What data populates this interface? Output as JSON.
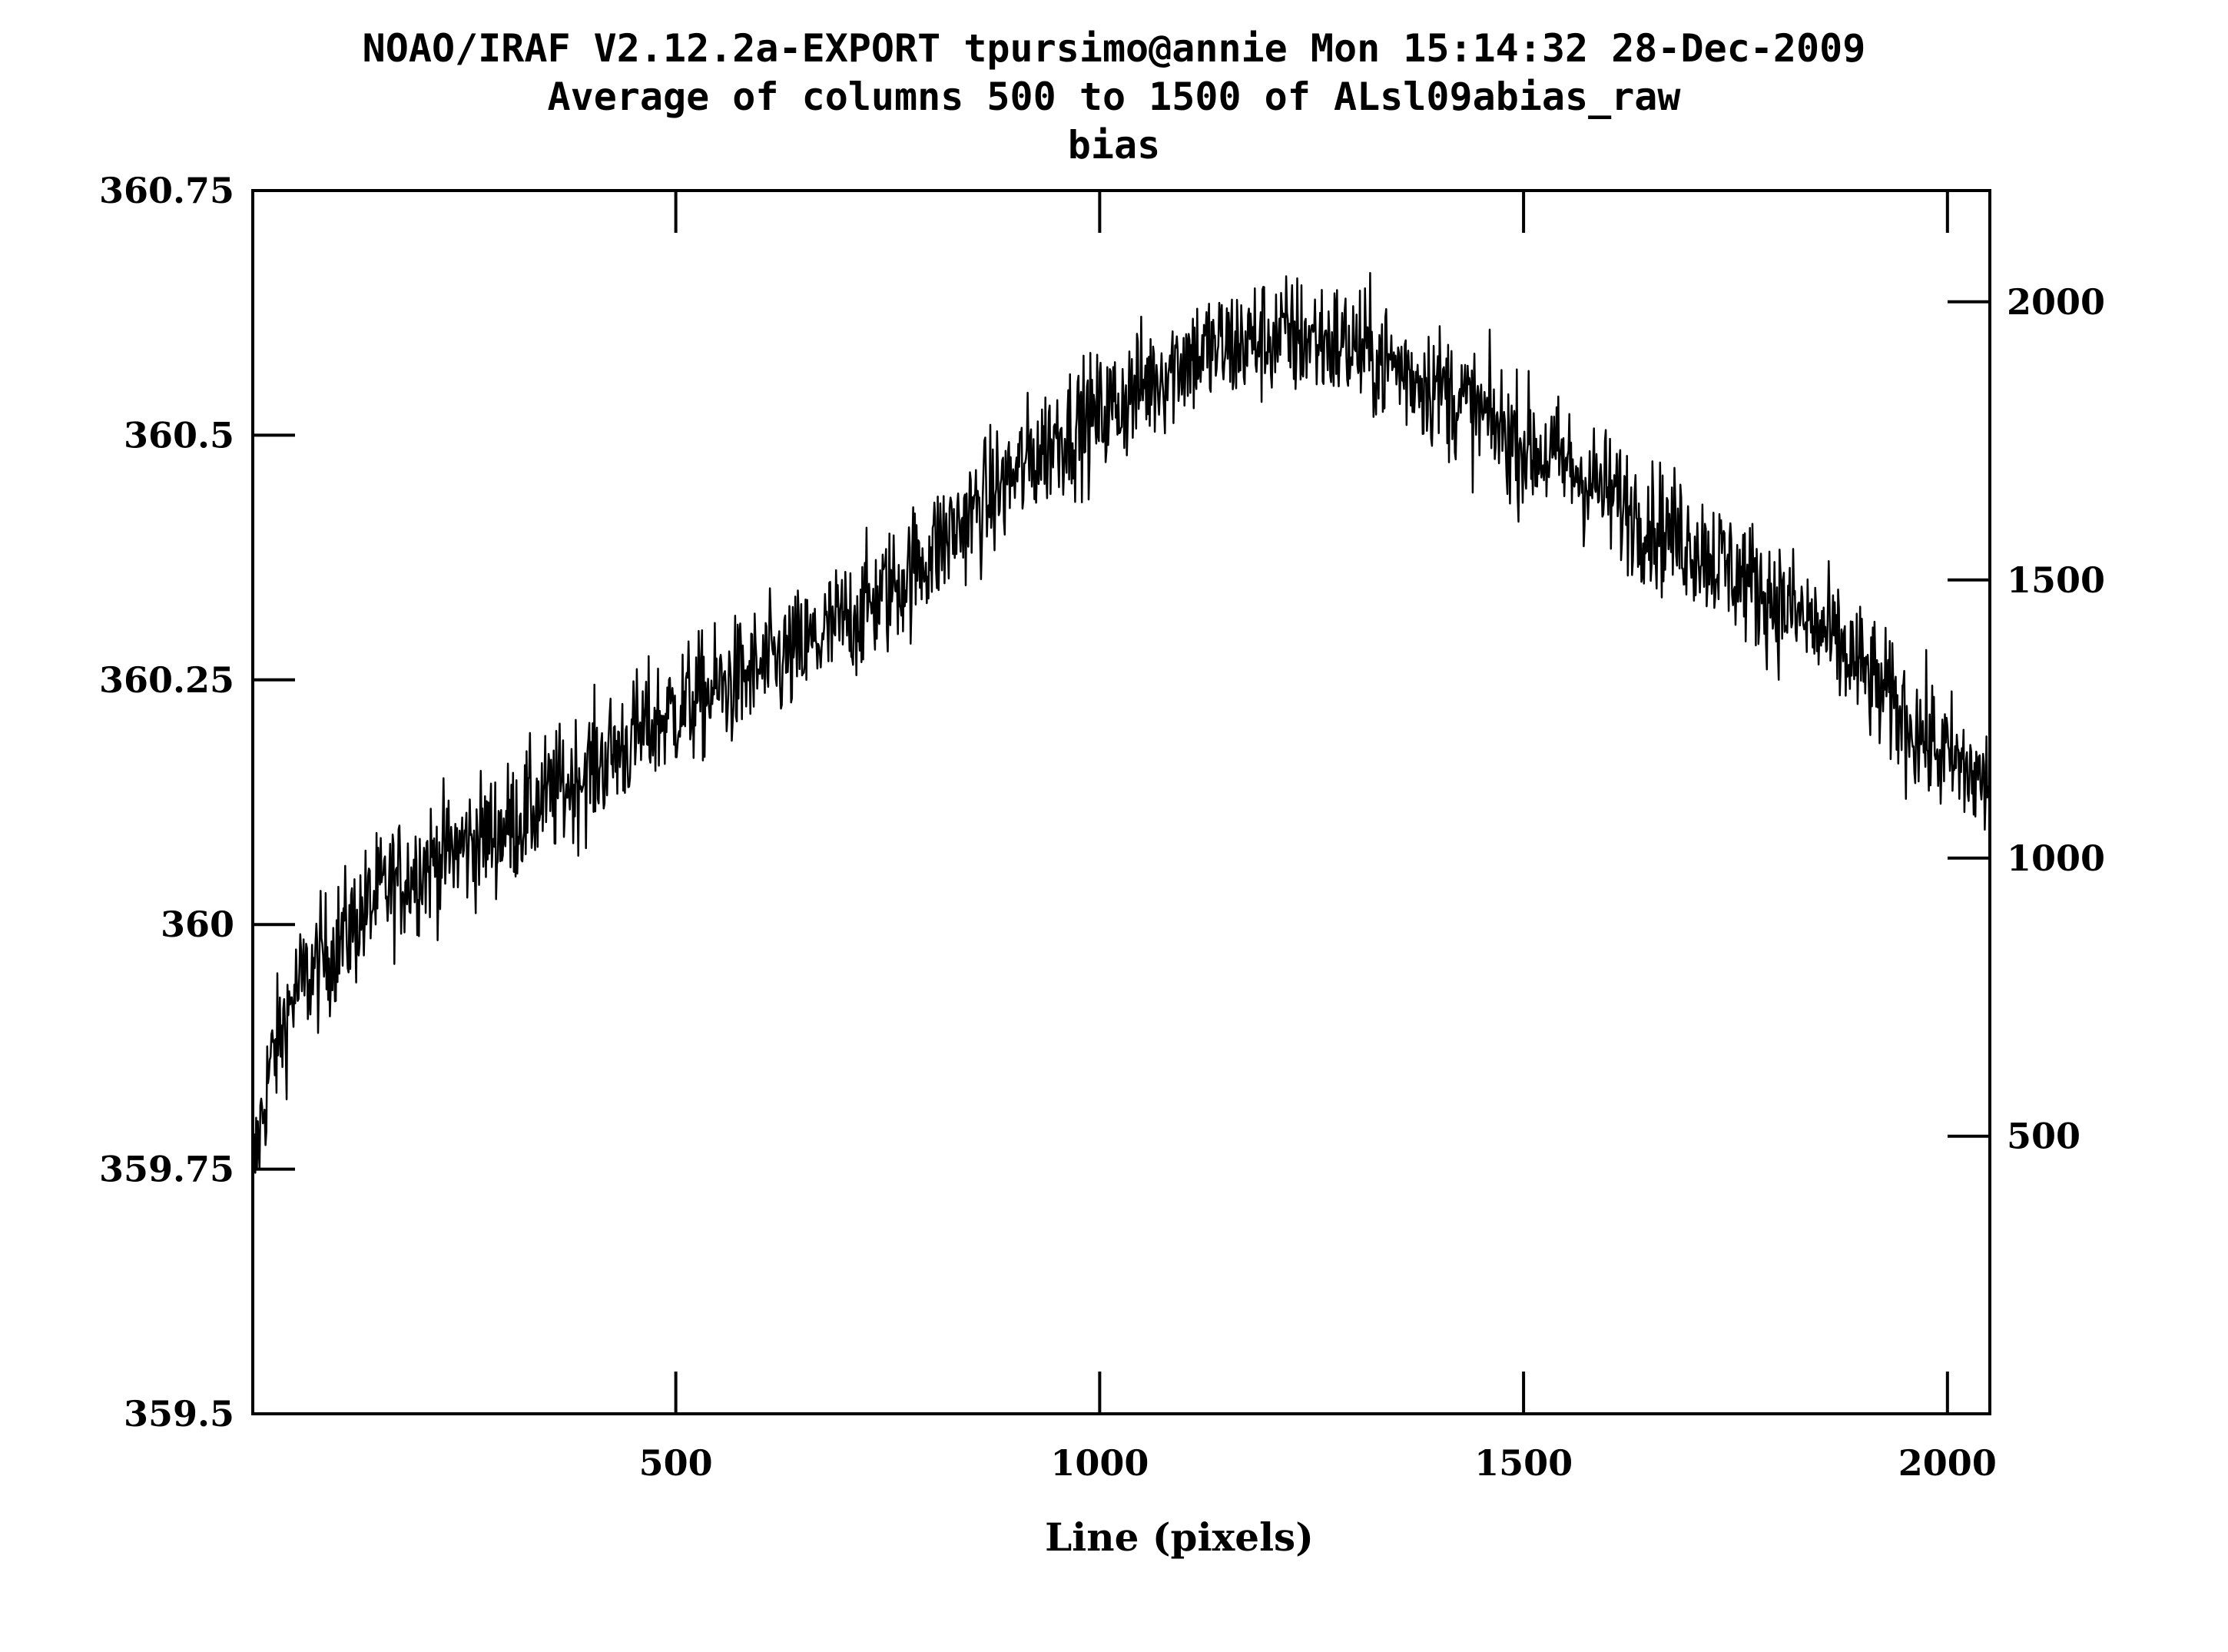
{
  "header": {
    "line1": "NOAO/IRAF V2.12.2a-EXPORT tpursimo@annie Mon 15:14:32 28-Dec-2009",
    "line2": "Average of columns 500 to 1500 of ALsl09abias_raw",
    "line3": "bias"
  },
  "chart_data": {
    "type": "line",
    "title": "Average of columns 500 to 1500 of ALsl09abias_raw",
    "subtitle": "bias",
    "xlabel": "Line (pixels)",
    "ylabel": "",
    "xlim": [
      1,
      2050
    ],
    "ylim": [
      359.5,
      360.75
    ],
    "right_axis_range": [
      1,
      2200
    ],
    "x_ticks": [
      500,
      1000,
      1500,
      2000
    ],
    "x_tick_labels": [
      "500",
      "1000",
      "1500",
      "2000"
    ],
    "y_ticks": [
      359.5,
      359.75,
      360,
      360.25,
      360.5,
      360.75
    ],
    "y_tick_labels": [
      "359.5",
      "359.75",
      "360",
      "360.25",
      "360.5",
      "360.75"
    ],
    "right_ticks": [
      500,
      1000,
      1500,
      2000
    ],
    "right_tick_labels": [
      "500",
      "1000",
      "1500",
      "2000"
    ],
    "grid": false,
    "legend": "none",
    "line_color": "#000000",
    "series": [
      {
        "x": [
          1,
          20,
          50,
          100,
          150,
          200,
          250,
          300,
          350,
          400,
          450,
          500,
          550,
          600,
          650,
          700,
          750,
          800,
          850,
          900,
          950,
          1000,
          1050,
          1100,
          1150,
          1200,
          1250,
          1300,
          1350,
          1400,
          1450,
          1500,
          1550,
          1600,
          1650,
          1700,
          1750,
          1800,
          1850,
          1900,
          1950,
          2000,
          2050
        ],
        "y": [
          359.74,
          359.85,
          359.93,
          359.98,
          360.03,
          360.06,
          360.08,
          360.1,
          360.13,
          360.16,
          360.19,
          360.22,
          360.24,
          360.26,
          360.28,
          360.31,
          360.34,
          360.38,
          360.42,
          360.46,
          360.5,
          360.52,
          360.55,
          360.58,
          360.59,
          360.6,
          360.6,
          360.59,
          360.57,
          360.55,
          360.52,
          360.49,
          360.47,
          360.44,
          360.41,
          360.39,
          360.36,
          360.33,
          360.3,
          360.26,
          360.21,
          360.17,
          360.14
        ]
      }
    ]
  }
}
